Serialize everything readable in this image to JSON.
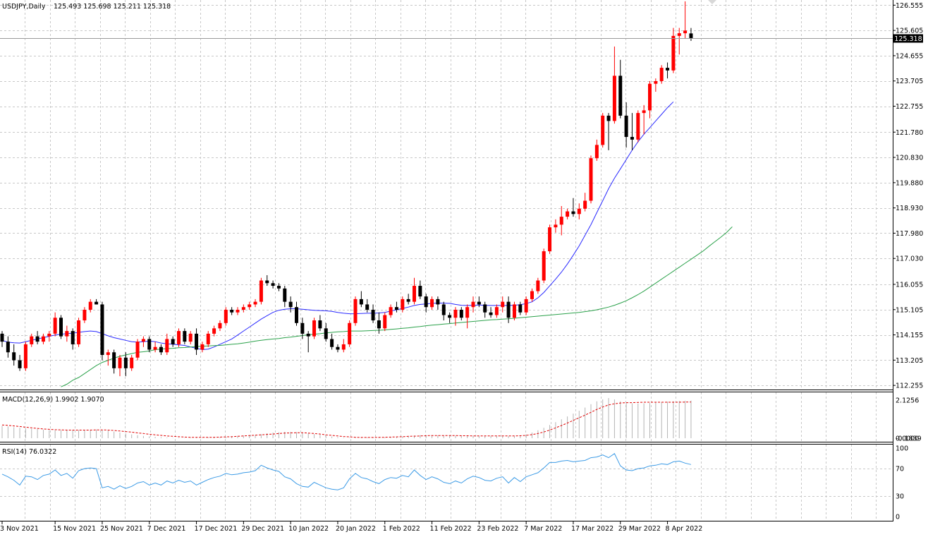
{
  "chart_data": {
    "type": "candlestick",
    "symbol_header": "USDJPY,Daily",
    "ohlc_header": "125.493 125.698 125.211 125.318",
    "last_price": 125.318,
    "last_price_label": "125.318",
    "colors": {
      "bull": "#ff0000",
      "bear": "#000000",
      "ma_fast": "#2a2aff",
      "ma_slow": "#2aa14a",
      "macd_signal": "#e00000",
      "macd_hist": "#b4b4b4",
      "rsi": "#3c9be6",
      "grid": "#c8c8c8"
    },
    "price_axis": {
      "ylim": [
        112.1,
        126.75
      ],
      "ticks": [
        "126.555",
        "125.605",
        "124.655",
        "123.705",
        "122.755",
        "121.780",
        "120.830",
        "119.880",
        "118.930",
        "117.980",
        "117.030",
        "116.055",
        "115.105",
        "114.155",
        "113.205",
        "112.255"
      ]
    },
    "x_axis": {
      "ticks": [
        {
          "label": "3 Nov 2021",
          "index": 0
        },
        {
          "label": "15 Nov 2021",
          "index": 9
        },
        {
          "label": "25 Nov 2021",
          "index": 17
        },
        {
          "label": "7 Dec 2021",
          "index": 25
        },
        {
          "label": "17 Dec 2021",
          "index": 33
        },
        {
          "label": "29 Dec 2021",
          "index": 41
        },
        {
          "label": "10 Jan 2022",
          "index": 49
        },
        {
          "label": "20 Jan 2022",
          "index": 57
        },
        {
          "label": "1 Feb 2022",
          "index": 65
        },
        {
          "label": "11 Feb 2022",
          "index": 73
        },
        {
          "label": "23 Feb 2022",
          "index": 81
        },
        {
          "label": "7 Mar 2022",
          "index": 89
        },
        {
          "label": "17 Mar 2022",
          "index": 97
        },
        {
          "label": "29 Mar 2022",
          "index": 105
        },
        {
          "label": "8 Apr 2022",
          "index": 113
        }
      ]
    },
    "candles": [
      [
        114.2,
        114.3,
        113.7,
        113.9
      ],
      [
        113.9,
        114.1,
        113.3,
        113.5
      ],
      [
        113.5,
        113.8,
        113.0,
        113.2
      ],
      [
        113.2,
        113.4,
        112.8,
        112.9
      ],
      [
        112.9,
        113.9,
        112.8,
        113.8
      ],
      [
        113.8,
        114.2,
        113.7,
        114.1
      ],
      [
        114.1,
        114.3,
        113.8,
        113.9
      ],
      [
        113.9,
        114.2,
        113.8,
        114.1
      ],
      [
        114.1,
        114.3,
        113.9,
        114.2
      ],
      [
        114.2,
        115.0,
        114.1,
        114.8
      ],
      [
        114.8,
        114.9,
        114.0,
        114.1
      ],
      [
        114.1,
        114.5,
        113.9,
        114.3
      ],
      [
        114.3,
        114.4,
        113.6,
        113.8
      ],
      [
        113.8,
        114.8,
        113.7,
        114.7
      ],
      [
        114.7,
        115.2,
        114.6,
        115.1
      ],
      [
        115.1,
        115.5,
        115.0,
        115.4
      ],
      [
        115.4,
        115.5,
        115.3,
        115.3
      ],
      [
        115.3,
        115.4,
        113.2,
        113.4
      ],
      [
        113.4,
        113.6,
        113.0,
        113.5
      ],
      [
        113.5,
        113.6,
        112.7,
        112.9
      ],
      [
        112.9,
        113.4,
        112.6,
        113.3
      ],
      [
        113.3,
        113.5,
        112.6,
        112.9
      ],
      [
        112.9,
        113.4,
        112.8,
        113.3
      ],
      [
        113.3,
        114.0,
        113.2,
        113.9
      ],
      [
        113.9,
        114.1,
        113.7,
        114.0
      ],
      [
        114.0,
        114.1,
        113.5,
        113.6
      ],
      [
        113.6,
        113.9,
        113.5,
        113.7
      ],
      [
        113.7,
        113.8,
        113.4,
        113.5
      ],
      [
        113.5,
        114.2,
        113.4,
        114.0
      ],
      [
        114.0,
        114.1,
        113.7,
        113.8
      ],
      [
        113.8,
        114.4,
        113.7,
        114.3
      ],
      [
        114.3,
        114.4,
        113.8,
        113.9
      ],
      [
        113.9,
        114.3,
        113.8,
        114.2
      ],
      [
        114.2,
        114.4,
        113.4,
        113.6
      ],
      [
        113.6,
        113.9,
        113.5,
        113.8
      ],
      [
        113.8,
        114.3,
        113.7,
        114.2
      ],
      [
        114.2,
        114.5,
        114.1,
        114.4
      ],
      [
        114.4,
        114.7,
        114.3,
        114.6
      ],
      [
        114.6,
        115.2,
        114.5,
        115.1
      ],
      [
        115.1,
        115.2,
        114.9,
        115.0
      ],
      [
        115.0,
        115.2,
        114.9,
        115.1
      ],
      [
        115.1,
        115.3,
        115.0,
        115.2
      ],
      [
        115.2,
        115.4,
        115.1,
        115.3
      ],
      [
        115.3,
        115.5,
        115.2,
        115.4
      ],
      [
        115.4,
        116.3,
        115.3,
        116.2
      ],
      [
        116.2,
        116.4,
        116.0,
        116.1
      ],
      [
        116.1,
        116.2,
        115.9,
        116.0
      ],
      [
        116.0,
        116.1,
        115.8,
        115.9
      ],
      [
        115.9,
        116.0,
        115.2,
        115.4
      ],
      [
        115.4,
        115.6,
        115.0,
        115.2
      ],
      [
        115.2,
        115.4,
        114.5,
        114.6
      ],
      [
        114.6,
        114.8,
        114.0,
        114.2
      ],
      [
        114.2,
        114.3,
        113.5,
        114.1
      ],
      [
        114.1,
        114.8,
        114.0,
        114.7
      ],
      [
        114.7,
        114.9,
        114.3,
        114.4
      ],
      [
        114.4,
        114.6,
        113.9,
        114.0
      ],
      [
        114.0,
        114.2,
        113.6,
        113.7
      ],
      [
        113.7,
        113.8,
        113.5,
        113.6
      ],
      [
        113.6,
        114.0,
        113.5,
        113.8
      ],
      [
        113.8,
        114.7,
        113.7,
        114.6
      ],
      [
        114.6,
        115.6,
        114.5,
        115.5
      ],
      [
        115.5,
        115.8,
        115.2,
        115.3
      ],
      [
        115.3,
        115.5,
        115.0,
        115.1
      ],
      [
        115.1,
        115.3,
        114.6,
        114.7
      ],
      [
        114.7,
        115.0,
        114.2,
        114.4
      ],
      [
        114.4,
        115.0,
        114.3,
        114.9
      ],
      [
        114.9,
        115.3,
        114.8,
        115.2
      ],
      [
        115.2,
        115.4,
        115.0,
        115.1
      ],
      [
        115.1,
        115.6,
        115.0,
        115.5
      ],
      [
        115.5,
        115.7,
        115.3,
        115.4
      ],
      [
        115.4,
        116.3,
        115.3,
        116.0
      ],
      [
        116.0,
        116.2,
        115.5,
        115.6
      ],
      [
        115.6,
        115.7,
        115.0,
        115.2
      ],
      [
        115.2,
        115.6,
        115.1,
        115.5
      ],
      [
        115.5,
        115.6,
        115.1,
        115.3
      ],
      [
        115.3,
        115.4,
        114.7,
        114.9
      ],
      [
        114.9,
        115.0,
        114.6,
        114.8
      ],
      [
        114.8,
        115.2,
        114.5,
        115.1
      ],
      [
        115.1,
        115.2,
        114.7,
        114.8
      ],
      [
        114.8,
        115.3,
        114.4,
        115.2
      ],
      [
        115.2,
        115.6,
        115.0,
        115.4
      ],
      [
        115.4,
        115.6,
        115.2,
        115.3
      ],
      [
        115.3,
        115.4,
        114.8,
        115.0
      ],
      [
        115.0,
        115.2,
        114.8,
        114.9
      ],
      [
        114.9,
        115.3,
        114.8,
        115.2
      ],
      [
        115.2,
        115.6,
        115.0,
        115.4
      ],
      [
        115.4,
        115.6,
        114.6,
        114.8
      ],
      [
        114.8,
        115.4,
        114.7,
        115.3
      ],
      [
        115.3,
        115.4,
        114.9,
        115.0
      ],
      [
        115.0,
        115.6,
        114.9,
        115.5
      ],
      [
        115.5,
        115.9,
        115.4,
        115.8
      ],
      [
        115.8,
        116.3,
        115.7,
        116.2
      ],
      [
        116.2,
        117.4,
        116.1,
        117.3
      ],
      [
        117.3,
        118.3,
        117.2,
        118.2
      ],
      [
        118.2,
        118.5,
        118.0,
        118.3
      ],
      [
        118.3,
        119.0,
        117.9,
        118.6
      ],
      [
        118.6,
        118.9,
        118.5,
        118.8
      ],
      [
        118.8,
        119.3,
        118.6,
        118.7
      ],
      [
        118.7,
        119.1,
        118.5,
        118.9
      ],
      [
        118.9,
        119.5,
        118.8,
        119.2
      ],
      [
        119.2,
        120.9,
        119.1,
        120.8
      ],
      [
        120.8,
        121.5,
        120.7,
        121.3
      ],
      [
        121.3,
        122.5,
        121.2,
        122.4
      ],
      [
        122.4,
        122.5,
        121.1,
        122.2
      ],
      [
        122.2,
        125.0,
        122.1,
        123.9
      ],
      [
        123.9,
        124.5,
        122.3,
        122.4
      ],
      [
        122.4,
        122.9,
        121.2,
        121.6
      ],
      [
        121.6,
        122.5,
        121.1,
        121.5
      ],
      [
        121.5,
        122.6,
        121.4,
        122.5
      ],
      [
        122.5,
        122.8,
        121.7,
        122.6
      ],
      [
        122.6,
        123.7,
        122.3,
        123.6
      ],
      [
        123.6,
        123.8,
        123.3,
        123.7
      ],
      [
        123.7,
        124.3,
        123.6,
        124.2
      ],
      [
        124.2,
        124.4,
        123.8,
        124.1
      ],
      [
        124.1,
        125.7,
        124.0,
        125.4
      ],
      [
        125.4,
        125.7,
        124.7,
        125.5
      ],
      [
        125.5,
        126.7,
        125.3,
        125.6
      ],
      [
        125.493,
        125.698,
        125.211,
        125.318
      ]
    ],
    "ma_fast_values": [
      113.95,
      113.88,
      113.86,
      113.85,
      113.9,
      113.95,
      114.0,
      114.05,
      114.1,
      114.15,
      114.18,
      114.2,
      114.22,
      114.25,
      114.28,
      114.3,
      114.28,
      114.2,
      114.12,
      114.05,
      114.0,
      113.95,
      113.9,
      113.88,
      113.9,
      113.92,
      113.9,
      113.85,
      113.82,
      113.8,
      113.78,
      113.76,
      113.7,
      113.65,
      113.6,
      113.62,
      113.7,
      113.8,
      113.9,
      114.0,
      114.15,
      114.3,
      114.45,
      114.6,
      114.75,
      114.88,
      115.0,
      115.08,
      115.12,
      115.14,
      115.14,
      115.12,
      115.1,
      115.08,
      115.07,
      115.06,
      115.04,
      115.0,
      114.97,
      114.95,
      114.95,
      114.96,
      114.97,
      114.97,
      114.98,
      115.0,
      115.05,
      115.1,
      115.15,
      115.2,
      115.26,
      115.3,
      115.32,
      115.34,
      115.35,
      115.35,
      115.34,
      115.3,
      115.27,
      115.26,
      115.27,
      115.28,
      115.27,
      115.26,
      115.26,
      115.26,
      115.26,
      115.27,
      115.29,
      115.33,
      115.4,
      115.55,
      115.75,
      116.0,
      116.25,
      116.52,
      116.82,
      117.15,
      117.5,
      117.9,
      118.3,
      118.75,
      119.2,
      119.65,
      120.05,
      120.4,
      120.75,
      121.1,
      121.42,
      121.7,
      121.95,
      122.2,
      122.45,
      122.7,
      122.92
    ],
    "ma_slow_values": [
      112.2,
      112.3,
      112.45,
      112.55,
      112.7,
      112.85,
      113.0,
      113.12,
      113.2,
      113.28,
      113.35,
      113.4,
      113.45,
      113.5,
      113.52,
      113.55,
      113.6,
      113.62,
      113.64,
      113.65,
      113.67,
      113.68,
      113.7,
      113.72,
      113.73,
      113.74,
      113.75,
      113.76,
      113.78,
      113.8,
      113.82,
      113.85,
      113.88,
      113.92,
      113.95,
      113.98,
      114.0,
      114.02,
      114.05,
      114.07,
      114.1,
      114.13,
      114.16,
      114.18,
      114.2,
      114.23,
      114.25,
      114.27,
      114.28,
      114.3,
      114.3,
      114.3,
      114.31,
      114.32,
      114.33,
      114.34,
      114.36,
      114.38,
      114.4,
      114.42,
      114.45,
      114.47,
      114.5,
      114.52,
      114.54,
      114.56,
      114.58,
      114.6,
      114.62,
      114.64,
      114.66,
      114.68,
      114.7,
      114.72,
      114.73,
      114.75,
      114.76,
      114.78,
      114.8,
      114.82,
      114.84,
      114.86,
      114.88,
      114.9,
      114.92,
      114.94,
      114.96,
      114.98,
      115.0,
      115.03,
      115.06,
      115.1,
      115.15,
      115.2,
      115.27,
      115.35,
      115.44,
      115.55,
      115.67,
      115.8,
      115.95,
      116.1,
      116.25,
      116.4,
      116.55,
      116.7,
      116.85,
      117.0,
      117.15,
      117.3,
      117.48,
      117.65,
      117.82,
      118.0,
      118.22
    ],
    "macd": {
      "label": "MACD(12,26,9) 1.9902 1.9070",
      "ylim": [
        0,
        2.1256
      ],
      "ticks": [
        "2.1256",
        "0.0000",
        "-0.1839"
      ],
      "hist": [
        0.65,
        0.62,
        0.58,
        0.55,
        0.52,
        0.5,
        0.48,
        0.45,
        0.43,
        0.42,
        0.42,
        0.42,
        0.42,
        0.42,
        0.43,
        0.45,
        0.46,
        0.44,
        0.4,
        0.35,
        0.3,
        0.25,
        0.2,
        0.16,
        0.12,
        0.1,
        0.07,
        0.05,
        0.03,
        0.02,
        0.02,
        0.02,
        0.02,
        0.02,
        0.02,
        0.03,
        0.04,
        0.05,
        0.07,
        0.1,
        0.12,
        0.14,
        0.16,
        0.18,
        0.22,
        0.26,
        0.3,
        0.32,
        0.34,
        0.34,
        0.32,
        0.3,
        0.26,
        0.22,
        0.18,
        0.13,
        0.09,
        0.05,
        0.03,
        0.02,
        0.02,
        0.02,
        0.03,
        0.03,
        0.03,
        0.04,
        0.05,
        0.07,
        0.09,
        0.11,
        0.14,
        0.16,
        0.16,
        0.15,
        0.15,
        0.15,
        0.14,
        0.13,
        0.13,
        0.12,
        0.12,
        0.12,
        0.12,
        0.12,
        0.12,
        0.11,
        0.11,
        0.12,
        0.15,
        0.2,
        0.3,
        0.42,
        0.55,
        0.7,
        0.85,
        1.0,
        1.15,
        1.3,
        1.45,
        1.62,
        1.8,
        1.95,
        2.05,
        2.12,
        2.05,
        1.95,
        1.88,
        1.84,
        1.83,
        1.84,
        1.86,
        1.88,
        1.9,
        1.93,
        1.95,
        1.97,
        1.98,
        1.99
      ],
      "signal": [
        0.7,
        0.68,
        0.65,
        0.62,
        0.58,
        0.55,
        0.52,
        0.49,
        0.47,
        0.45,
        0.44,
        0.43,
        0.43,
        0.43,
        0.43,
        0.43,
        0.44,
        0.44,
        0.43,
        0.41,
        0.38,
        0.35,
        0.32,
        0.28,
        0.25,
        0.21,
        0.18,
        0.15,
        0.12,
        0.1,
        0.08,
        0.06,
        0.05,
        0.05,
        0.05,
        0.05,
        0.05,
        0.06,
        0.07,
        0.08,
        0.1,
        0.12,
        0.14,
        0.16,
        0.18,
        0.2,
        0.22,
        0.25,
        0.27,
        0.28,
        0.29,
        0.29,
        0.27,
        0.25,
        0.22,
        0.18,
        0.15,
        0.12,
        0.09,
        0.07,
        0.05,
        0.04,
        0.04,
        0.04,
        0.05,
        0.05,
        0.06,
        0.07,
        0.08,
        0.1,
        0.11,
        0.12,
        0.13,
        0.14,
        0.14,
        0.14,
        0.14,
        0.14,
        0.13,
        0.13,
        0.12,
        0.12,
        0.12,
        0.12,
        0.12,
        0.12,
        0.12,
        0.12,
        0.13,
        0.15,
        0.19,
        0.25,
        0.33,
        0.43,
        0.55,
        0.67,
        0.8,
        0.94,
        1.08,
        1.22,
        1.37,
        1.52,
        1.65,
        1.76,
        1.82,
        1.86,
        1.88,
        1.88,
        1.89,
        1.9,
        1.9,
        1.9,
        1.9,
        1.9,
        1.9,
        1.9,
        1.91,
        1.91
      ]
    },
    "rsi": {
      "label": "RSI(14) 76.0322",
      "ylim": [
        0,
        100
      ],
      "ticks": [
        "100",
        "70",
        "30",
        "0"
      ],
      "values": [
        62,
        58,
        53,
        46,
        59,
        58,
        54,
        60,
        62,
        68,
        60,
        63,
        56,
        67,
        70,
        71,
        70,
        42,
        44,
        40,
        45,
        41,
        44,
        49,
        51,
        46,
        49,
        46,
        52,
        49,
        53,
        50,
        52,
        46,
        50,
        54,
        57,
        59,
        63,
        61,
        62,
        64,
        65,
        67,
        75,
        71,
        68,
        66,
        58,
        55,
        48,
        44,
        43,
        50,
        46,
        42,
        40,
        39,
        42,
        55,
        63,
        57,
        55,
        51,
        48,
        54,
        57,
        56,
        60,
        58,
        68,
        60,
        54,
        58,
        55,
        50,
        48,
        52,
        49,
        55,
        59,
        57,
        53,
        52,
        56,
        58,
        49,
        57,
        51,
        58,
        61,
        64,
        71,
        79,
        79,
        81,
        82,
        80,
        81,
        82,
        86,
        87,
        90,
        86,
        92,
        74,
        68,
        67,
        70,
        71,
        74,
        75,
        77,
        76,
        80,
        81,
        78,
        76
      ]
    }
  }
}
